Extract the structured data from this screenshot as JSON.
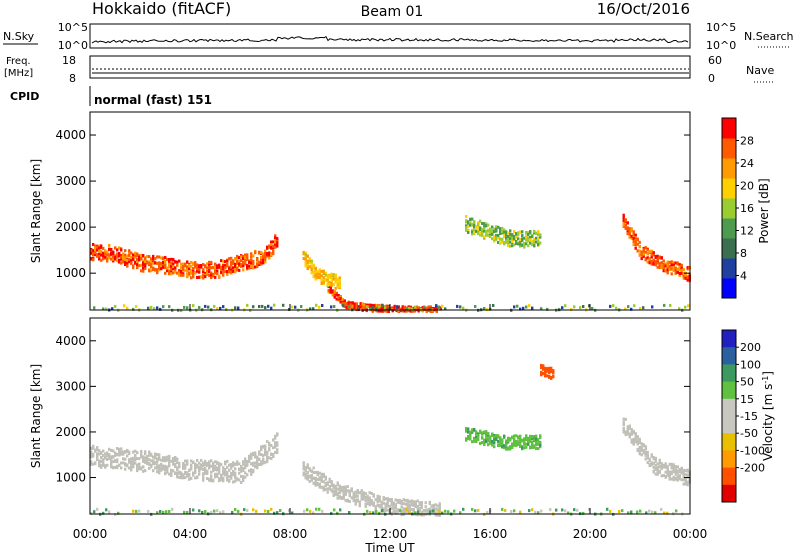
{
  "header": {
    "station": "Hokkaido (fitACF)",
    "beam": "Beam 01",
    "date": "16/Oct/2016"
  },
  "panels": {
    "nsky_label": "N.Sky",
    "nsky_ticks": [
      "10^5",
      "10^0"
    ],
    "nsearch_label": "N.Search",
    "freq_label_1": "Freq.",
    "freq_label_2": "[MHz]",
    "freq_ticks": [
      "18",
      "8"
    ],
    "nave_label": "Nave",
    "nave_ticks": [
      "60",
      "0"
    ],
    "cpid_label": "CPID",
    "cpid_value": "normal (fast) 151"
  },
  "colors": {
    "power_scale": [
      "#0000ff",
      "#2040a0",
      "#3c6e50",
      "#4e9a4e",
      "#9acd32",
      "#ffd000",
      "#ff9a00",
      "#ff5a00",
      "#ff0000"
    ],
    "velocity_scale": [
      "#e00000",
      "#ff5000",
      "#ff9a00",
      "#e8c000",
      "#c8c8c0",
      "#c8c8c0",
      "#60c040",
      "#3c9a60",
      "#2a60a0",
      "#2020c0"
    ],
    "ground_scatter": "#c0c0b8"
  },
  "chart_data": [
    {
      "type": "heatmap",
      "name": "power",
      "xlabel": "",
      "ylabel": "Slant Range [km]",
      "xlim": [
        0,
        24
      ],
      "ylim": [
        200,
        4500
      ],
      "yticks": [
        1000,
        2000,
        3000,
        4000
      ],
      "colorbar_label": "Power [dB]",
      "colorbar_ticks": [
        4,
        8,
        12,
        16,
        20,
        24,
        28
      ],
      "colorbar_range": [
        0,
        32
      ],
      "features": [
        {
          "t": [
            0.0,
            1.0,
            2.0,
            3.0,
            4.0,
            5.0,
            6.0,
            7.0,
            7.5
          ],
          "r": [
            1500,
            1450,
            1250,
            1200,
            1100,
            1100,
            1250,
            1400,
            1800
          ],
          "width": 350,
          "level": 27
        },
        {
          "t": [
            21.3,
            22.0,
            23.0,
            24.0
          ],
          "r": [
            2200,
            1500,
            1200,
            1000
          ],
          "width": 300,
          "level": 27
        },
        {
          "t": [
            9.5,
            10.2,
            11.0,
            12.0,
            13.0,
            14.0
          ],
          "r": [
            700,
            350,
            280,
            240,
            230,
            230
          ],
          "width": 150,
          "level": 28
        },
        {
          "t": [
            8.5,
            9.0,
            9.5,
            10.0
          ],
          "r": [
            1400,
            1000,
            900,
            800
          ],
          "width": 300,
          "level": 21
        },
        {
          "t": [
            15.0,
            16.0,
            17.0,
            18.0
          ],
          "r": [
            2100,
            1900,
            1750,
            1800
          ],
          "width": 350,
          "level": 15
        }
      ]
    },
    {
      "type": "heatmap",
      "name": "velocity",
      "xlabel": "Time UT",
      "ylabel": "Slant Range [km]",
      "xlim": [
        0,
        24
      ],
      "ylim": [
        200,
        4500
      ],
      "yticks": [
        1000,
        2000,
        3000,
        4000
      ],
      "xticks": [
        "00:00",
        "04:00",
        "08:00",
        "12:00",
        "16:00",
        "20:00",
        "00:00"
      ],
      "colorbar_label": "Velocity [m s^-1]",
      "colorbar_ticks": [
        200,
        100,
        50,
        15,
        -15,
        -50,
        -100,
        -200
      ],
      "features": [
        {
          "t": [
            0.0,
            2.0,
            4.0,
            6.0,
            7.5
          ],
          "r": [
            1500,
            1400,
            1200,
            1150,
            1800
          ],
          "width": 450,
          "level": 0
        },
        {
          "t": [
            21.3,
            22.5,
            24.0
          ],
          "r": [
            2200,
            1300,
            1000
          ],
          "width": 350,
          "level": 0
        },
        {
          "t": [
            8.5,
            10.0,
            12.0,
            14.0
          ],
          "r": [
            1200,
            700,
            400,
            300
          ],
          "width": 350,
          "level": 0
        },
        {
          "t": [
            15.0,
            16.5,
            18.0
          ],
          "r": [
            2000,
            1800,
            1800
          ],
          "width": 300,
          "level": 40
        },
        {
          "t": [
            18.0,
            18.5
          ],
          "r": [
            3400,
            3300
          ],
          "width": 250,
          "level": -180
        }
      ]
    }
  ]
}
